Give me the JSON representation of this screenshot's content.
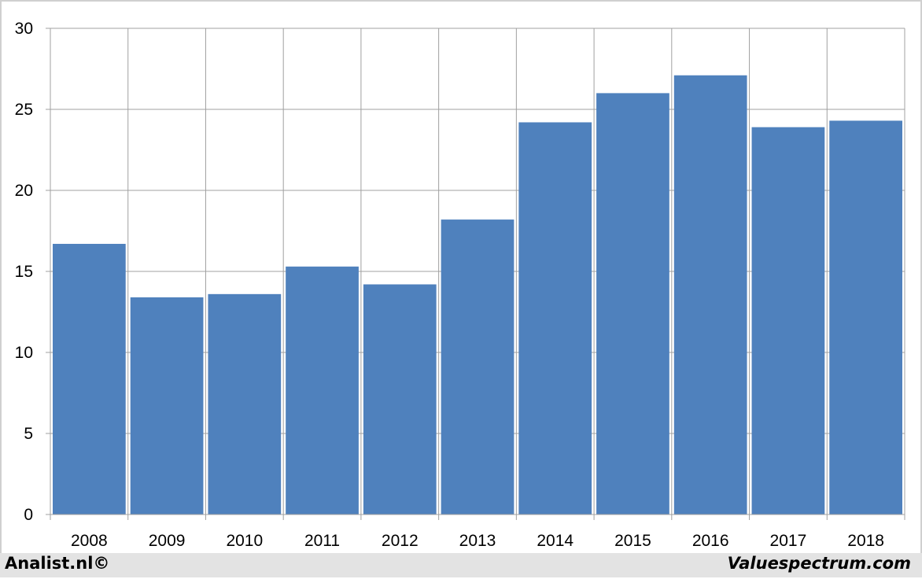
{
  "chart_data": {
    "type": "bar",
    "categories": [
      "2008",
      "2009",
      "2010",
      "2011",
      "2012",
      "2013",
      "2014",
      "2015",
      "2016",
      "2017",
      "2018"
    ],
    "values": [
      16.7,
      13.4,
      13.6,
      15.3,
      14.2,
      18.2,
      24.2,
      26.0,
      27.1,
      23.9,
      24.3
    ],
    "ylim": [
      0,
      30
    ],
    "yticks": [
      0,
      5,
      10,
      15,
      20,
      25,
      30
    ],
    "grid": true,
    "bar_color": "#4f81bd",
    "grid_color": "#a0a0a0"
  },
  "footer": {
    "left_text": "Analist.nl©",
    "right_text": "Valuespectrum.com"
  }
}
